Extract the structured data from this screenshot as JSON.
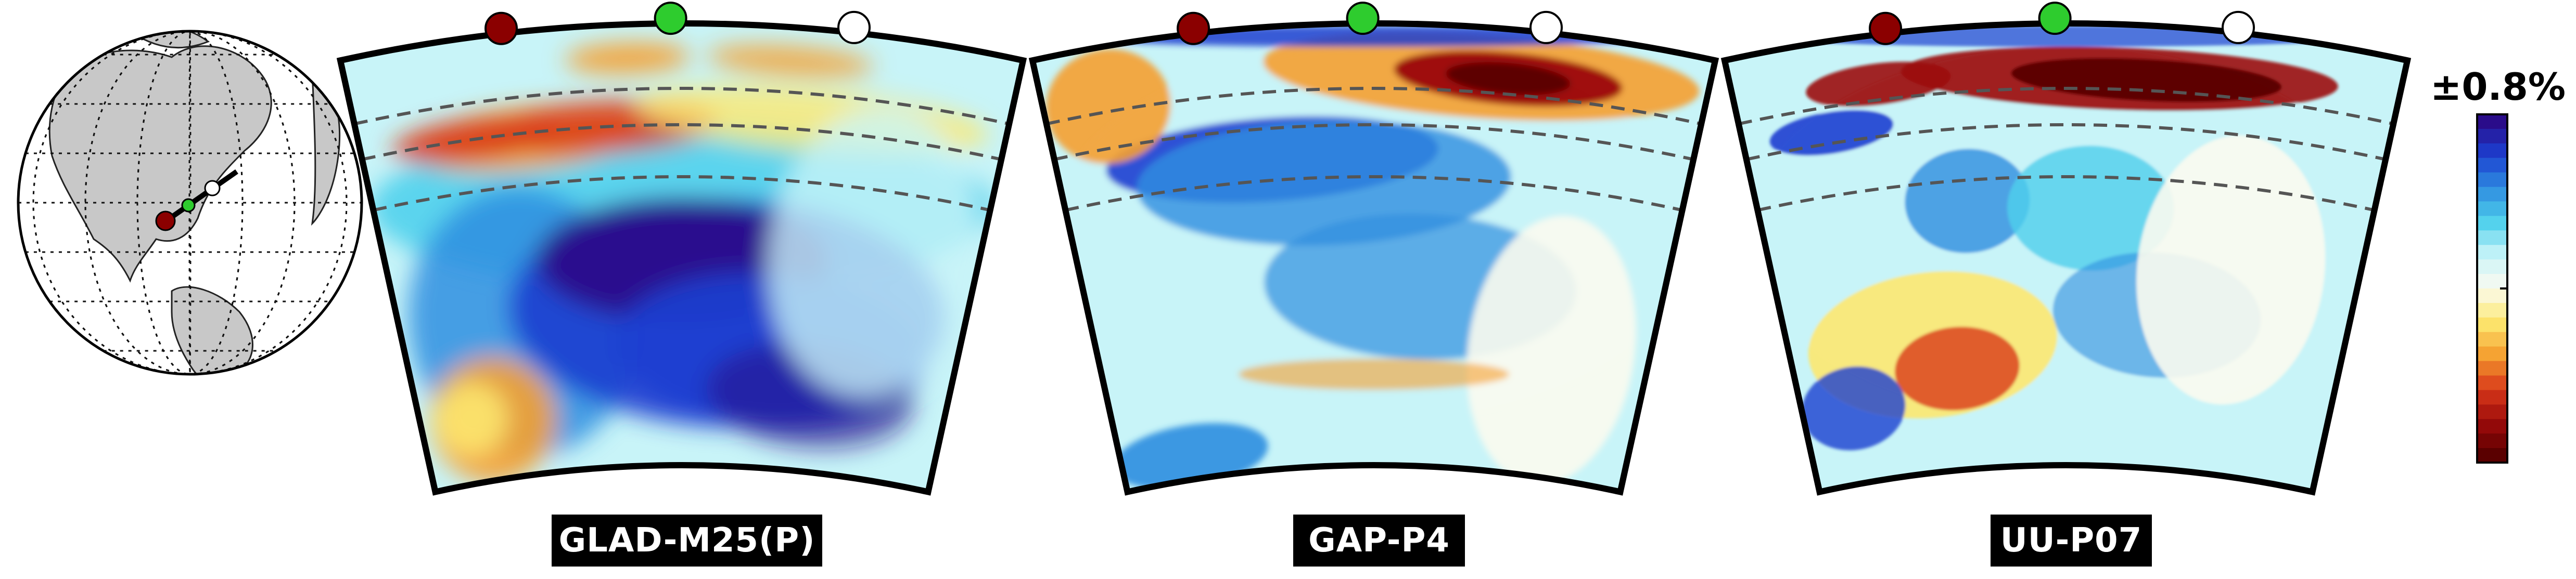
{
  "panels": [
    {
      "id": "glad",
      "label": "GLAD-M25(P)"
    },
    {
      "id": "gap",
      "label": "GAP-P4"
    },
    {
      "id": "uu",
      "label": "UU-P07"
    }
  ],
  "colorbar": {
    "title": "±0.8%",
    "stops": [
      "#5a0000",
      "#9b0a0a",
      "#d93a1a",
      "#f5a030",
      "#fde870",
      "#fbfbf0",
      "#c8f4f8",
      "#4fd0ec",
      "#2f8ee0",
      "#1c3fd0",
      "#2a0c8a"
    ]
  },
  "stations": [
    {
      "name": "start",
      "color": "#8b0000"
    },
    {
      "name": "mid",
      "color": "#2ecc2e"
    },
    {
      "name": "end",
      "color": "#ffffff"
    }
  ],
  "colors": {
    "outline": "#000000",
    "dash": "#555555",
    "land": "#c8c8c8",
    "ocean": "#ffffff"
  }
}
